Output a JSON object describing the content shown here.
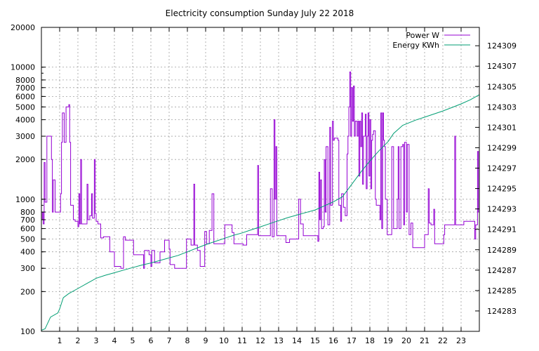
{
  "chart_data": {
    "type": "line",
    "title": "Electricity consumption Sunday July 22 2018",
    "xlabel": "",
    "ylabel": "",
    "xlim": [
      0,
      24
    ],
    "ylim": [
      100,
      20000
    ],
    "y2lim": [
      124281.0,
      124310.8
    ],
    "y_scale": "log",
    "grid": true,
    "legend_position": "top-right",
    "x_ticks": [
      "1",
      "2",
      "3",
      "4",
      "5",
      "6",
      "7",
      "8",
      "9",
      "10",
      "11",
      "12",
      "13",
      "14",
      "15",
      "16",
      "17",
      "18",
      "19",
      "20",
      "21",
      "22",
      "23"
    ],
    "y_ticks": [
      "100",
      "200",
      "300",
      "400",
      "500",
      "600",
      "700",
      "800",
      "1000",
      "2000",
      "3000",
      "4000",
      "5000",
      "6000",
      "7000",
      "8000",
      "10000",
      "20000"
    ],
    "y_tick_values": [
      100,
      200,
      300,
      400,
      500,
      600,
      700,
      800,
      1000,
      2000,
      3000,
      4000,
      5000,
      6000,
      7000,
      8000,
      10000,
      20000
    ],
    "y2_ticks": [
      "124283",
      "124285",
      "124287",
      "124289",
      "124291",
      "124293",
      "124295",
      "124297",
      "124299",
      "124301",
      "124303",
      "124305",
      "124307",
      "124309"
    ],
    "y2_tick_values": [
      124283,
      124285,
      124287,
      124289,
      124291,
      124293,
      124295,
      124297,
      124299,
      124301,
      124303,
      124305,
      124307,
      124309
    ],
    "colors": {
      "power": "#9400d3",
      "energy": "#009e73",
      "grid": "#a0a0a0",
      "axis": "#000000"
    },
    "series": [
      {
        "name": "Power W",
        "axis": "y",
        "step": true,
        "points": [
          [
            0.0,
            700
          ],
          [
            0.05,
            800
          ],
          [
            0.1,
            650
          ],
          [
            0.15,
            1900
          ],
          [
            0.2,
            950
          ],
          [
            0.3,
            3000
          ],
          [
            0.55,
            2000
          ],
          [
            0.6,
            800
          ],
          [
            0.65,
            1400
          ],
          [
            0.75,
            800
          ],
          [
            1.0,
            800
          ],
          [
            1.05,
            1100
          ],
          [
            1.1,
            2700
          ],
          [
            1.15,
            4500
          ],
          [
            1.25,
            2700
          ],
          [
            1.35,
            5000
          ],
          [
            1.5,
            5200
          ],
          [
            1.55,
            2700
          ],
          [
            1.6,
            900
          ],
          [
            1.75,
            700
          ],
          [
            1.85,
            680
          ],
          [
            2.0,
            620
          ],
          [
            2.05,
            1100
          ],
          [
            2.1,
            650
          ],
          [
            2.15,
            2000
          ],
          [
            2.2,
            650
          ],
          [
            2.35,
            650
          ],
          [
            2.5,
            1300
          ],
          [
            2.55,
            700
          ],
          [
            2.65,
            750
          ],
          [
            2.75,
            1100
          ],
          [
            2.8,
            720
          ],
          [
            2.9,
            2000
          ],
          [
            2.95,
            780
          ],
          [
            3.0,
            680
          ],
          [
            3.1,
            650
          ],
          [
            3.25,
            510
          ],
          [
            3.4,
            520
          ],
          [
            3.5,
            520
          ],
          [
            3.75,
            400
          ],
          [
            4.0,
            310
          ],
          [
            4.15,
            310
          ],
          [
            4.35,
            300
          ],
          [
            4.5,
            520
          ],
          [
            4.6,
            490
          ],
          [
            4.75,
            490
          ],
          [
            5.0,
            490
          ],
          [
            5.05,
            380
          ],
          [
            5.25,
            380
          ],
          [
            5.45,
            380
          ],
          [
            5.6,
            300
          ],
          [
            5.65,
            410
          ],
          [
            5.8,
            410
          ],
          [
            5.9,
            380
          ],
          [
            6.0,
            310
          ],
          [
            6.05,
            410
          ],
          [
            6.2,
            330
          ],
          [
            6.35,
            330
          ],
          [
            6.5,
            400
          ],
          [
            6.75,
            490
          ],
          [
            6.9,
            490
          ],
          [
            7.0,
            420
          ],
          [
            7.05,
            320
          ],
          [
            7.3,
            300
          ],
          [
            7.5,
            300
          ],
          [
            7.75,
            300
          ],
          [
            7.95,
            500
          ],
          [
            8.0,
            500
          ],
          [
            8.2,
            450
          ],
          [
            8.35,
            1300
          ],
          [
            8.4,
            450
          ],
          [
            8.55,
            410
          ],
          [
            8.7,
            310
          ],
          [
            8.85,
            310
          ],
          [
            8.95,
            570
          ],
          [
            9.05,
            460
          ],
          [
            9.2,
            580
          ],
          [
            9.35,
            1100
          ],
          [
            9.45,
            460
          ],
          [
            9.65,
            460
          ],
          [
            9.8,
            460
          ],
          [
            10.0,
            460
          ],
          [
            10.05,
            640
          ],
          [
            10.15,
            640
          ],
          [
            10.35,
            640
          ],
          [
            10.45,
            560
          ],
          [
            10.55,
            460
          ],
          [
            10.75,
            460
          ],
          [
            10.95,
            460
          ],
          [
            11.05,
            450
          ],
          [
            11.25,
            540
          ],
          [
            11.45,
            540
          ],
          [
            11.65,
            540
          ],
          [
            11.75,
            540
          ],
          [
            11.85,
            1800
          ],
          [
            11.9,
            530
          ],
          [
            12.05,
            530
          ],
          [
            12.25,
            530
          ],
          [
            12.45,
            530
          ],
          [
            12.55,
            1200
          ],
          [
            12.65,
            520
          ],
          [
            12.75,
            4000
          ],
          [
            12.8,
            1000
          ],
          [
            12.85,
            2500
          ],
          [
            12.9,
            530
          ],
          [
            13.0,
            530
          ],
          [
            13.2,
            530
          ],
          [
            13.4,
            470
          ],
          [
            13.6,
            500
          ],
          [
            13.8,
            500
          ],
          [
            13.9,
            500
          ],
          [
            14.0,
            500
          ],
          [
            14.1,
            1000
          ],
          [
            14.2,
            650
          ],
          [
            14.35,
            530
          ],
          [
            14.5,
            530
          ],
          [
            14.7,
            530
          ],
          [
            14.9,
            530
          ],
          [
            15.05,
            530
          ],
          [
            15.15,
            480
          ],
          [
            15.2,
            1600
          ],
          [
            15.25,
            700
          ],
          [
            15.3,
            1400
          ],
          [
            15.35,
            600
          ],
          [
            15.45,
            620
          ],
          [
            15.5,
            2000
          ],
          [
            15.55,
            800
          ],
          [
            15.6,
            2500
          ],
          [
            15.7,
            640
          ],
          [
            15.8,
            3500
          ],
          [
            15.85,
            900
          ],
          [
            15.95,
            3900
          ],
          [
            16.0,
            2800
          ],
          [
            16.05,
            2900
          ],
          [
            16.15,
            2900
          ],
          [
            16.25,
            2800
          ],
          [
            16.3,
            900
          ],
          [
            16.4,
            680
          ],
          [
            16.45,
            1100
          ],
          [
            16.55,
            870
          ],
          [
            16.65,
            750
          ],
          [
            16.75,
            2200
          ],
          [
            16.8,
            3000
          ],
          [
            16.85,
            5000
          ],
          [
            16.9,
            9200
          ],
          [
            16.95,
            3000
          ],
          [
            17.0,
            7000
          ],
          [
            17.05,
            3900
          ],
          [
            17.1,
            7200
          ],
          [
            17.15,
            3000
          ],
          [
            17.2,
            3900
          ],
          [
            17.3,
            3000
          ],
          [
            17.35,
            3900
          ],
          [
            17.4,
            1500
          ],
          [
            17.45,
            3900
          ],
          [
            17.5,
            2500
          ],
          [
            17.55,
            4500
          ],
          [
            17.6,
            1300
          ],
          [
            17.65,
            3000
          ],
          [
            17.75,
            4400
          ],
          [
            17.8,
            1200
          ],
          [
            17.85,
            3000
          ],
          [
            17.9,
            4500
          ],
          [
            17.95,
            1500
          ],
          [
            18.0,
            4000
          ],
          [
            18.05,
            1200
          ],
          [
            18.1,
            2800
          ],
          [
            18.15,
            3100
          ],
          [
            18.2,
            3300
          ],
          [
            18.3,
            1000
          ],
          [
            18.35,
            900
          ],
          [
            18.5,
            900
          ],
          [
            18.55,
            700
          ],
          [
            18.6,
            4500
          ],
          [
            18.65,
            600
          ],
          [
            18.7,
            4500
          ],
          [
            18.75,
            2800
          ],
          [
            18.8,
            2500
          ],
          [
            18.85,
            1000
          ],
          [
            18.95,
            540
          ],
          [
            19.05,
            540
          ],
          [
            19.2,
            2500
          ],
          [
            19.25,
            2500
          ],
          [
            19.3,
            600
          ],
          [
            19.4,
            600
          ],
          [
            19.5,
            1000
          ],
          [
            19.55,
            2500
          ],
          [
            19.6,
            600
          ],
          [
            19.7,
            2500
          ],
          [
            19.8,
            2600
          ],
          [
            19.85,
            640
          ],
          [
            19.9,
            2700
          ],
          [
            20.0,
            800
          ],
          [
            20.05,
            2600
          ],
          [
            20.15,
            540
          ],
          [
            20.25,
            660
          ],
          [
            20.35,
            430
          ],
          [
            20.5,
            430
          ],
          [
            20.7,
            430
          ],
          [
            20.95,
            430
          ],
          [
            21.0,
            540
          ],
          [
            21.1,
            540
          ],
          [
            21.2,
            1200
          ],
          [
            21.25,
            660
          ],
          [
            21.35,
            640
          ],
          [
            21.5,
            840
          ],
          [
            21.55,
            460
          ],
          [
            21.7,
            460
          ],
          [
            21.85,
            460
          ],
          [
            22.0,
            460
          ],
          [
            22.05,
            540
          ],
          [
            22.1,
            640
          ],
          [
            22.3,
            640
          ],
          [
            22.5,
            640
          ],
          [
            22.65,
            3000
          ],
          [
            22.7,
            640
          ],
          [
            22.85,
            640
          ],
          [
            23.0,
            640
          ],
          [
            23.15,
            680
          ],
          [
            23.35,
            680
          ],
          [
            23.55,
            680
          ],
          [
            23.75,
            500
          ],
          [
            23.8,
            640
          ],
          [
            23.9,
            2300
          ],
          [
            23.95,
            800
          ],
          [
            24.0,
            800
          ]
        ]
      },
      {
        "name": "Energy KWh",
        "axis": "y2",
        "step": false,
        "points": [
          [
            0.0,
            124281.1
          ],
          [
            0.2,
            124281.25
          ],
          [
            0.5,
            124282.4
          ],
          [
            0.9,
            124282.8
          ],
          [
            1.0,
            124283.2
          ],
          [
            1.2,
            124284.3
          ],
          [
            1.5,
            124284.7
          ],
          [
            2.0,
            124285.2
          ],
          [
            2.5,
            124285.7
          ],
          [
            3.0,
            124286.2
          ],
          [
            3.5,
            124286.5
          ],
          [
            4.0,
            124286.75
          ],
          [
            4.5,
            124287.0
          ],
          [
            5.0,
            124287.25
          ],
          [
            5.5,
            124287.5
          ],
          [
            6.0,
            124287.7
          ],
          [
            6.5,
            124287.95
          ],
          [
            7.0,
            124288.2
          ],
          [
            7.5,
            124288.45
          ],
          [
            8.0,
            124288.8
          ],
          [
            8.5,
            124289.15
          ],
          [
            9.0,
            124289.5
          ],
          [
            9.5,
            124289.8
          ],
          [
            10.0,
            124290.1
          ],
          [
            10.5,
            124290.4
          ],
          [
            11.0,
            124290.65
          ],
          [
            11.5,
            124290.95
          ],
          [
            12.0,
            124291.25
          ],
          [
            12.5,
            124291.55
          ],
          [
            13.0,
            124291.85
          ],
          [
            13.5,
            124292.15
          ],
          [
            14.0,
            124292.4
          ],
          [
            14.5,
            124292.65
          ],
          [
            15.0,
            124292.9
          ],
          [
            15.5,
            124293.3
          ],
          [
            16.0,
            124293.7
          ],
          [
            16.5,
            124294.2
          ],
          [
            17.0,
            124295.4
          ],
          [
            17.5,
            124296.6
          ],
          [
            18.0,
            124297.7
          ],
          [
            18.5,
            124298.7
          ],
          [
            19.0,
            124299.6
          ],
          [
            19.3,
            124300.4
          ],
          [
            19.8,
            124301.2
          ],
          [
            20.5,
            124301.7
          ],
          [
            21.0,
            124302.0
          ],
          [
            21.5,
            124302.3
          ],
          [
            22.0,
            124302.6
          ],
          [
            22.5,
            124302.95
          ],
          [
            23.0,
            124303.3
          ],
          [
            23.5,
            124303.7
          ],
          [
            24.0,
            124304.2
          ]
        ]
      }
    ]
  }
}
